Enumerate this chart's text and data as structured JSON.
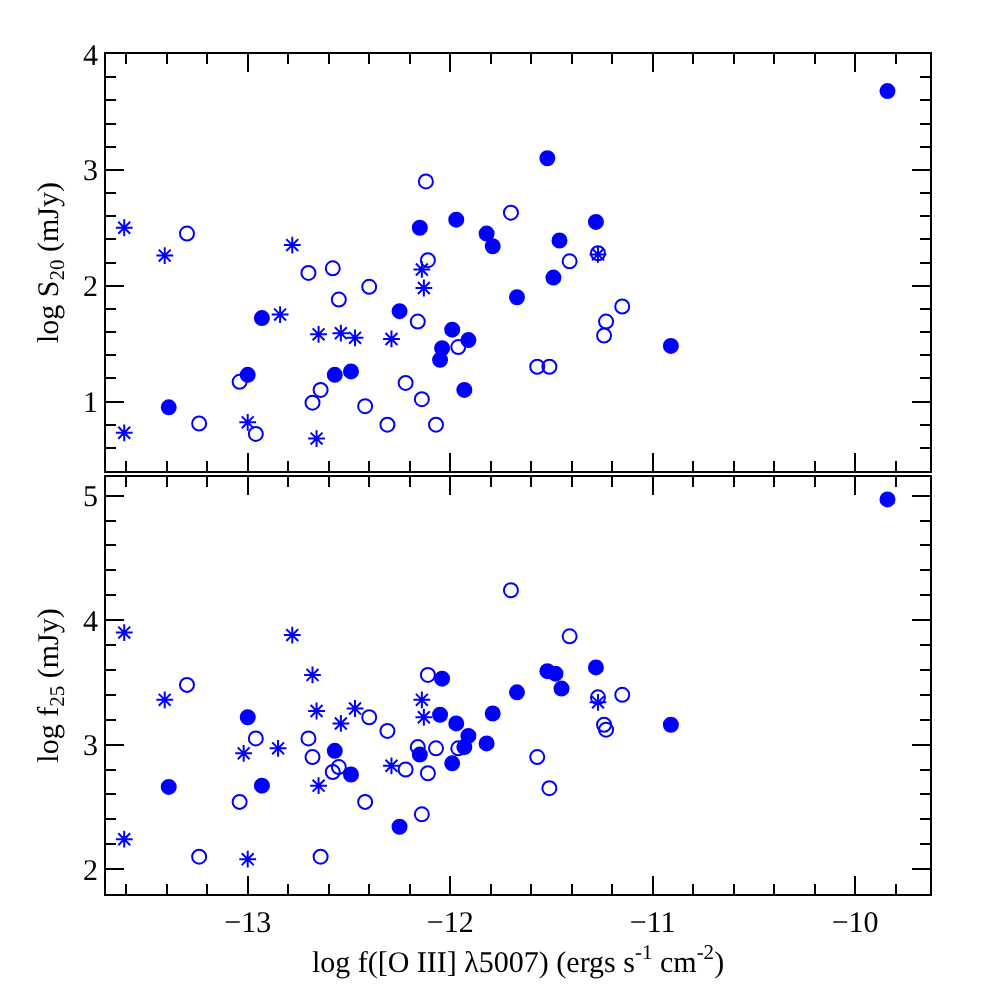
{
  "chart_data": [
    {
      "type": "scatter",
      "ylabel": "log S$_{20}$ (mJy)",
      "xlim": [
        -13.7,
        -9.63
      ],
      "ylim": [
        0.4,
        4.0
      ],
      "tick_labels": "y",
      "xticks": [
        -13,
        -12,
        -11,
        -10,
        {
          "value": -13.6,
          "label": null
        },
        {
          "value": -13.4,
          "label": null
        },
        {
          "value": -13.2,
          "label": null
        },
        {
          "value": -12.8,
          "label": null
        },
        {
          "value": -12.6,
          "label": null
        },
        {
          "value": -12.4,
          "label": null
        },
        {
          "value": -12.2,
          "label": null
        },
        {
          "value": -11.8,
          "label": null
        },
        {
          "value": -11.6,
          "label": null
        },
        {
          "value": -11.4,
          "label": null
        },
        {
          "value": -11.2,
          "label": null
        },
        {
          "value": -10.8,
          "label": null
        },
        {
          "value": -10.6,
          "label": null
        },
        {
          "value": -10.4,
          "label": null
        },
        {
          "value": -10.2,
          "label": null
        },
        {
          "value": -9.8,
          "label": null
        }
      ],
      "yticks": [
        1,
        2,
        3,
        4,
        {
          "value": 0.6,
          "label": null
        },
        {
          "value": 0.8,
          "label": null
        },
        {
          "value": 1.2,
          "label": null
        },
        {
          "value": 1.4,
          "label": null
        },
        {
          "value": 1.6,
          "label": null
        },
        {
          "value": 1.8,
          "label": null
        },
        {
          "value": 2.2,
          "label": null
        },
        {
          "value": 2.4,
          "label": null
        },
        {
          "value": 2.6,
          "label": null
        },
        {
          "value": 2.8,
          "label": null
        },
        {
          "value": 3.2,
          "label": null
        },
        {
          "value": 3.4,
          "label": null
        },
        {
          "value": 3.6,
          "label": null
        },
        {
          "value": 3.8,
          "label": null
        }
      ],
      "series": [
        {
          "marker": "circle",
          "color": "#0000ff",
          "x": [
            -13.39,
            -12.93,
            -13.0,
            -12.57,
            -12.49,
            -12.15,
            -11.97,
            -11.82,
            -11.79,
            -12.25,
            -11.99,
            -12.04,
            -12.05,
            -11.91,
            -11.93,
            -11.67,
            -11.52,
            -11.46,
            -11.28,
            -11.49,
            -10.91,
            -9.84
          ],
          "values": [
            0.95,
            1.72,
            1.23,
            1.23,
            1.26,
            2.5,
            2.57,
            2.45,
            2.34,
            1.78,
            1.62,
            1.46,
            1.36,
            1.53,
            1.1,
            1.9,
            3.1,
            2.39,
            2.55,
            2.07,
            1.48,
            3.68
          ]
        },
        {
          "marker": "circle-open",
          "color": "#0000ff",
          "x": [
            -13.3,
            -12.12,
            -11.7,
            -12.7,
            -12.58,
            -12.4,
            -12.55,
            -12.11,
            -12.16,
            -11.96,
            -11.57,
            -13.04,
            -12.64,
            -12.68,
            -12.22,
            -12.14,
            -12.42,
            -13.24,
            -12.96,
            -12.31,
            -12.07,
            -11.41,
            -11.27,
            -11.15,
            -11.23,
            -11.24,
            -11.51
          ],
          "values": [
            2.45,
            2.9,
            2.63,
            2.11,
            2.15,
            1.99,
            1.88,
            2.22,
            1.69,
            1.47,
            1.3,
            1.17,
            1.1,
            0.99,
            1.16,
            1.02,
            0.96,
            0.81,
            0.72,
            0.8,
            0.8,
            2.21,
            2.28,
            1.82,
            1.69,
            1.57,
            1.3
          ]
        },
        {
          "marker": "cross",
          "color": "#0000ff",
          "x": [
            -13.61,
            -13.41,
            -12.78,
            -12.84,
            -12.65,
            -12.54,
            -12.47,
            -12.29,
            -12.14,
            -12.13,
            -13.0,
            -13.61,
            -12.66,
            -11.27
          ],
          "values": [
            2.5,
            2.26,
            2.35,
            1.75,
            1.58,
            1.59,
            1.55,
            1.54,
            2.14,
            1.98,
            0.82,
            0.73,
            0.68,
            2.27
          ]
        }
      ]
    },
    {
      "type": "scatter",
      "xlabel": "log f([O III] λ5007) (ergs s$^{-1}$ cm$^{-2}$)",
      "ylabel": "log f$_{25}$ (mJy)",
      "xlim": [
        -13.7,
        -9.63
      ],
      "ylim": [
        1.8,
        5.15
      ],
      "xticks": [
        -13,
        -12,
        -11,
        -10,
        {
          "value": -13.6,
          "label": null
        },
        {
          "value": -13.4,
          "label": null
        },
        {
          "value": -13.2,
          "label": null
        },
        {
          "value": -12.8,
          "label": null
        },
        {
          "value": -12.6,
          "label": null
        },
        {
          "value": -12.4,
          "label": null
        },
        {
          "value": -12.2,
          "label": null
        },
        {
          "value": -11.8,
          "label": null
        },
        {
          "value": -11.6,
          "label": null
        },
        {
          "value": -11.4,
          "label": null
        },
        {
          "value": -11.2,
          "label": null
        },
        {
          "value": -10.8,
          "label": null
        },
        {
          "value": -10.6,
          "label": null
        },
        {
          "value": -10.4,
          "label": null
        },
        {
          "value": -10.2,
          "label": null
        },
        {
          "value": -9.8,
          "label": null
        }
      ],
      "yticks": [
        2,
        3,
        4,
        5,
        {
          "value": 2.2,
          "label": null
        },
        {
          "value": 2.4,
          "label": null
        },
        {
          "value": 2.6,
          "label": null
        },
        {
          "value": 2.8,
          "label": null
        },
        {
          "value": 3.2,
          "label": null
        },
        {
          "value": 3.4,
          "label": null
        },
        {
          "value": 3.6,
          "label": null
        },
        {
          "value": 3.8,
          "label": null
        },
        {
          "value": 4.2,
          "label": null
        },
        {
          "value": 4.4,
          "label": null
        },
        {
          "value": 4.6,
          "label": null
        },
        {
          "value": 4.8,
          "label": null
        }
      ],
      "series": [
        {
          "marker": "circle",
          "color": "#0000ff",
          "x": [
            -13.39,
            -13.0,
            -12.93,
            -12.57,
            -12.49,
            -12.25,
            -12.15,
            -12.04,
            -12.05,
            -11.97,
            -11.99,
            -11.93,
            -11.91,
            -11.82,
            -11.79,
            -11.67,
            -11.52,
            -11.48,
            -11.45,
            -11.28,
            -10.91,
            -9.84
          ],
          "values": [
            2.66,
            3.22,
            2.67,
            2.95,
            2.76,
            2.34,
            2.92,
            3.53,
            3.24,
            3.17,
            2.85,
            2.98,
            3.07,
            3.01,
            3.25,
            3.42,
            3.59,
            3.57,
            3.45,
            3.62,
            3.16,
            4.97
          ]
        },
        {
          "marker": "circle-open",
          "color": "#0000ff",
          "x": [
            -13.3,
            -12.96,
            -13.04,
            -13.24,
            -12.7,
            -12.68,
            -12.55,
            -12.58,
            -12.64,
            -12.4,
            -12.31,
            -12.42,
            -12.22,
            -12.16,
            -12.11,
            -12.11,
            -12.14,
            -12.07,
            -11.96,
            -11.7,
            -11.57,
            -11.41,
            -11.51,
            -11.27,
            -11.15,
            -11.24,
            -11.23
          ],
          "values": [
            3.48,
            3.05,
            2.54,
            2.1,
            3.05,
            2.9,
            2.82,
            2.78,
            2.1,
            3.22,
            3.11,
            2.54,
            2.8,
            2.98,
            3.56,
            2.77,
            2.44,
            2.97,
            2.97,
            4.24,
            2.9,
            3.87,
            2.65,
            3.38,
            3.4,
            3.16,
            3.12
          ]
        },
        {
          "marker": "cross",
          "color": "#0000ff",
          "x": [
            -13.61,
            -13.61,
            -13.41,
            -12.78,
            -12.68,
            -12.66,
            -13.02,
            -12.85,
            -12.54,
            -12.47,
            -12.65,
            -13.0,
            -12.29,
            -12.14,
            -12.13,
            -11.27
          ],
          "values": [
            3.9,
            2.24,
            3.36,
            3.88,
            3.56,
            3.27,
            2.93,
            2.97,
            3.17,
            3.29,
            2.67,
            2.08,
            2.83,
            3.36,
            3.22,
            3.34
          ]
        }
      ]
    }
  ]
}
